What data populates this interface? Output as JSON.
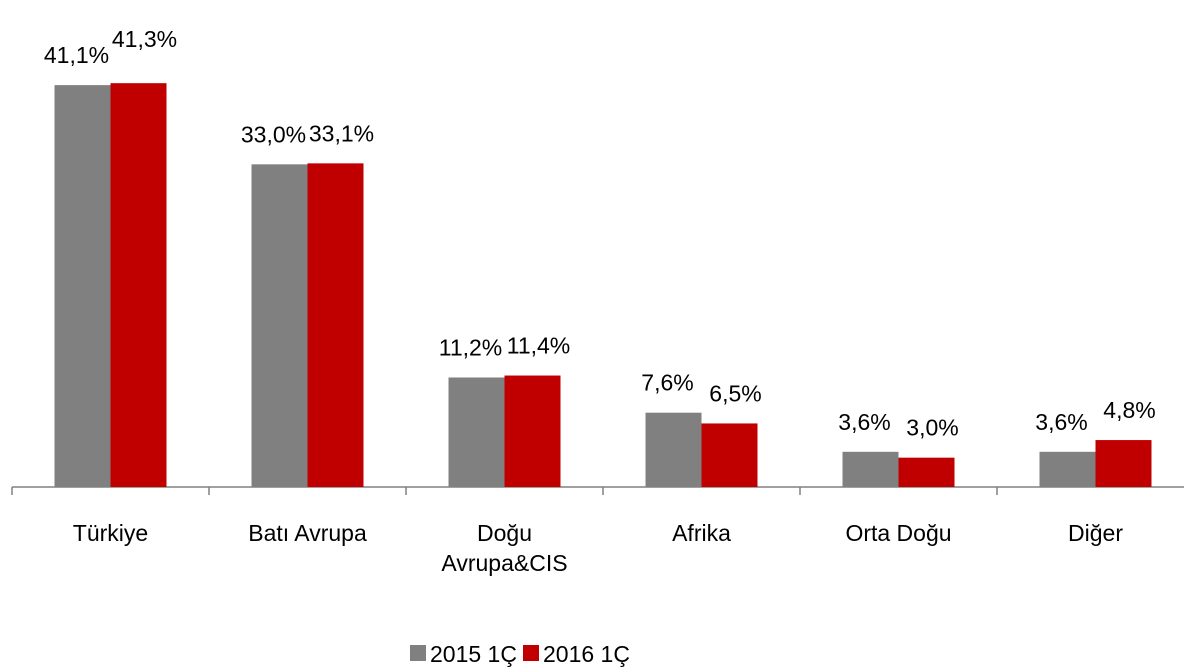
{
  "chart_data": {
    "type": "bar",
    "categories": [
      "Türkiye",
      "Batı Avrupa",
      "Doğu Avrupa&CIS",
      "Afrika",
      "Orta Doğu",
      "Diğer"
    ],
    "series": [
      {
        "name": "2015 1Ç",
        "color": "#808080",
        "values": [
          41.1,
          33.0,
          11.2,
          7.6,
          3.6,
          3.6
        ],
        "value_labels": [
          "41,1%",
          "33,0%",
          "11,2%",
          "7,6%",
          "3,6%",
          "3,6%"
        ]
      },
      {
        "name": "2016 1Ç",
        "color": "#c00000",
        "values": [
          41.3,
          33.1,
          11.4,
          6.5,
          3.0,
          4.8
        ],
        "value_labels": [
          "41,3%",
          "33,1%",
          "11,4%",
          "6,5%",
          "3,0%",
          "4,8%"
        ]
      }
    ],
    "ylim": [
      0,
      45
    ],
    "legend": "bottom"
  }
}
